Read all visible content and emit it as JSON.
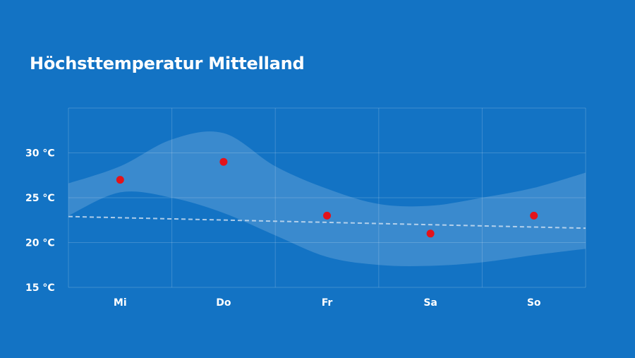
{
  "title": "Höchsttemperatur Mittelland",
  "colors": {
    "background": "#1373c4",
    "band": "#ffffff",
    "point": "#e3131b",
    "trend": "#c9dcf0",
    "grid": "#ffffff"
  },
  "chart_data": {
    "type": "scatter",
    "title": "Höchsttemperatur Mittelland",
    "xlabel": "",
    "ylabel": "",
    "categories": [
      "Mi",
      "Do",
      "Fr",
      "Sa",
      "So"
    ],
    "y_ticks": [
      15,
      20,
      25,
      30
    ],
    "y_tick_labels": [
      "15 °C",
      "20 °C",
      "25 °C",
      "30 °C"
    ],
    "unit": "°C",
    "ylim": [
      15,
      35
    ],
    "grid": true,
    "series": [
      {
        "kind": "points",
        "values": [
          27,
          29,
          23,
          21,
          23
        ]
      },
      {
        "kind": "band",
        "x": [
          -0.5,
          0,
          0.5,
          1,
          1.5,
          2,
          2.5,
          3,
          3.5,
          4,
          4.5
        ],
        "upper": [
          26.6,
          28.5,
          31.5,
          32.2,
          28.5,
          26.0,
          24.3,
          24.1,
          25.0,
          26.1,
          27.8
        ],
        "lower": [
          23.0,
          25.6,
          25.0,
          23.3,
          20.8,
          18.4,
          17.5,
          17.4,
          17.8,
          18.6,
          19.3
        ]
      },
      {
        "kind": "trend",
        "x": [
          -0.5,
          4.5
        ],
        "values": [
          22.9,
          21.6
        ]
      }
    ]
  }
}
